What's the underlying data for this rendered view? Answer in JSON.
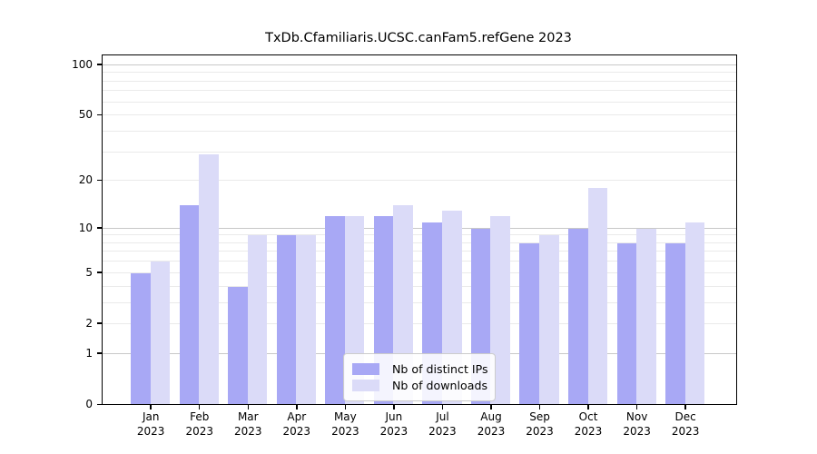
{
  "chart_data": {
    "type": "bar",
    "title": "TxDb.Cfamiliaris.UCSC.canFam5.refGene 2023",
    "categories": [
      "Jan",
      "Feb",
      "Mar",
      "Apr",
      "May",
      "Jun",
      "Jul",
      "Aug",
      "Sep",
      "Oct",
      "Nov",
      "Dec"
    ],
    "category_year": "2023",
    "series": [
      {
        "name": "Nb of distinct IPs",
        "color": "#a8a8f5",
        "values": [
          5,
          14,
          4,
          9,
          12,
          12,
          11,
          10,
          8,
          10,
          8,
          8
        ]
      },
      {
        "name": "Nb of downloads",
        "color": "#dbdbf8",
        "values": [
          6,
          29,
          9,
          9,
          12,
          14,
          13,
          12,
          9,
          18,
          10,
          11
        ]
      }
    ],
    "y_scale": "log10(1+x)",
    "y_tick_labels": [
      "0",
      "1",
      "2",
      "5",
      "10",
      "20",
      "50",
      "100"
    ],
    "y_tick_values": [
      0,
      1,
      2,
      5,
      10,
      20,
      50,
      100
    ],
    "y_axis_top_value": 115,
    "gridlines_major": [
      1,
      10,
      100
    ],
    "gridlines_minor": [
      2,
      3,
      4,
      5,
      6,
      7,
      8,
      9,
      20,
      30,
      40,
      50,
      60,
      70,
      80,
      90
    ],
    "grid": true,
    "legend_position": "bottom-center",
    "axis_color": "#000000",
    "background_color": "#ffffff"
  }
}
